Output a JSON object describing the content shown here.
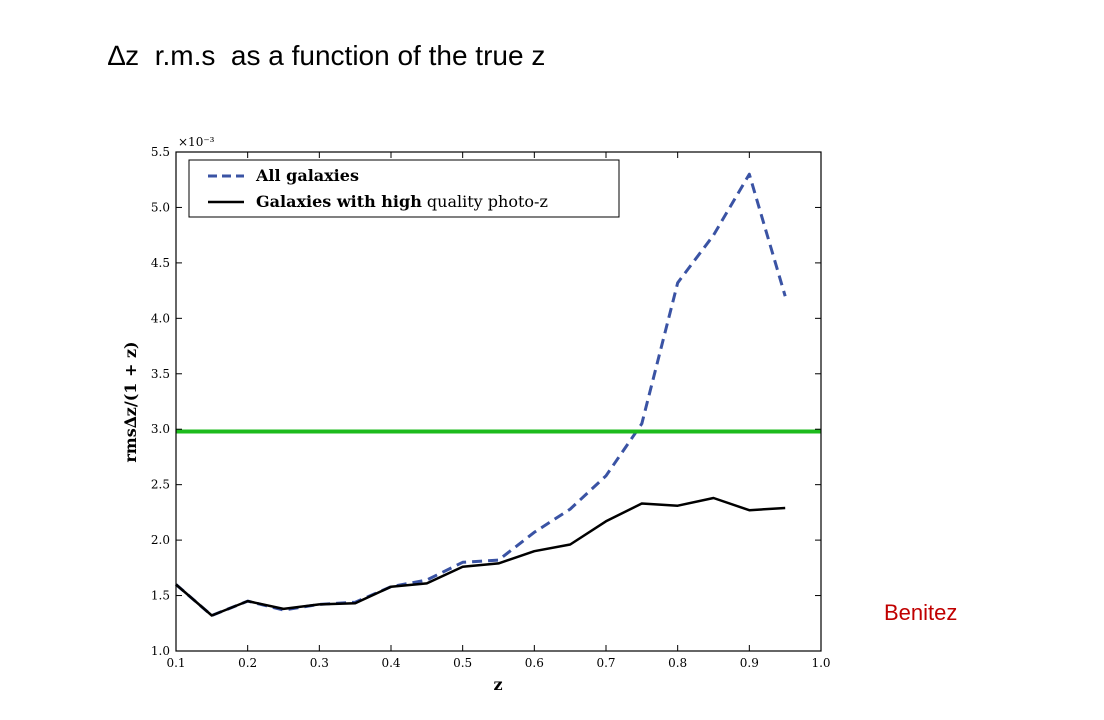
{
  "slide": {
    "title": "∆z  r.m.s  as a function of the true z",
    "credit": "Benitez"
  },
  "chart_data": {
    "type": "line",
    "xlabel": "z",
    "ylabel": "rms∆z/(1 + z)",
    "y_multiplier": "×10⁻³",
    "xlim": [
      0.1,
      1.0
    ],
    "ylim": [
      1.0,
      5.5
    ],
    "x_ticks": [
      0.1,
      0.2,
      0.3,
      0.4,
      0.5,
      0.6,
      0.7,
      0.8,
      0.9,
      1.0
    ],
    "x_tick_labels": [
      "0.1",
      "0.2",
      "0.3",
      "0.4",
      "0.5",
      "0.6",
      "0.7",
      "0.8",
      "0.9",
      "1.0"
    ],
    "y_ticks": [
      1.0,
      1.5,
      2.0,
      2.5,
      3.0,
      3.5,
      4.0,
      4.5,
      5.0,
      5.5
    ],
    "y_tick_labels": [
      "1.0",
      "1.5",
      "2.0",
      "2.5",
      "3.0",
      "3.5",
      "4.0",
      "4.5",
      "5.0",
      "5.5"
    ],
    "legend_placement": "top-left",
    "series": [
      {
        "name": "All galaxies",
        "style": "dashed",
        "color": "#3a53a4",
        "x": [
          0.1,
          0.15,
          0.2,
          0.25,
          0.3,
          0.35,
          0.4,
          0.45,
          0.5,
          0.55,
          0.6,
          0.65,
          0.7,
          0.75,
          0.8,
          0.85,
          0.9,
          0.95
        ],
        "y": [
          1.6,
          1.32,
          1.45,
          1.37,
          1.42,
          1.44,
          1.58,
          1.64,
          1.8,
          1.82,
          2.07,
          2.28,
          2.58,
          3.05,
          4.32,
          4.75,
          5.3,
          4.2
        ]
      },
      {
        "name_parts": [
          {
            "text": "Galaxies with ",
            "bold": true
          },
          {
            "text": "high",
            "bold": true
          },
          {
            "text": " quality photo-z",
            "bold": false
          }
        ],
        "style": "solid",
        "color": "#000000",
        "x": [
          0.1,
          0.15,
          0.2,
          0.25,
          0.3,
          0.35,
          0.4,
          0.45,
          0.5,
          0.55,
          0.6,
          0.65,
          0.7,
          0.75,
          0.8,
          0.85,
          0.9,
          0.95
        ],
        "y": [
          1.6,
          1.32,
          1.45,
          1.38,
          1.42,
          1.43,
          1.58,
          1.61,
          1.76,
          1.79,
          1.9,
          1.96,
          2.17,
          2.33,
          2.31,
          2.38,
          2.27,
          2.29
        ]
      }
    ],
    "reference_line": {
      "y": 2.98,
      "color": "#1dbb1d"
    }
  }
}
